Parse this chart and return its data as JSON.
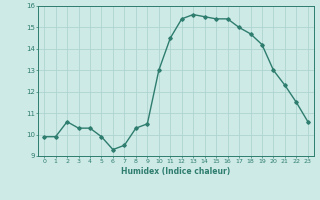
{
  "x": [
    0,
    1,
    2,
    3,
    4,
    5,
    6,
    7,
    8,
    9,
    10,
    11,
    12,
    13,
    14,
    15,
    16,
    17,
    18,
    19,
    20,
    21,
    22,
    23
  ],
  "y": [
    9.9,
    9.9,
    10.6,
    10.3,
    10.3,
    9.9,
    9.3,
    9.5,
    10.3,
    10.5,
    13.0,
    14.5,
    15.4,
    15.6,
    15.5,
    15.4,
    15.4,
    15.0,
    14.7,
    14.2,
    13.0,
    12.3,
    11.5,
    10.6
  ],
  "xlabel": "Humidex (Indice chaleur)",
  "ylim": [
    9,
    16
  ],
  "xlim": [
    -0.5,
    23.5
  ],
  "yticks": [
    9,
    10,
    11,
    12,
    13,
    14,
    15,
    16
  ],
  "xticks": [
    0,
    1,
    2,
    3,
    4,
    5,
    6,
    7,
    8,
    9,
    10,
    11,
    12,
    13,
    14,
    15,
    16,
    17,
    18,
    19,
    20,
    21,
    22,
    23
  ],
  "line_color": "#2e7d6e",
  "marker": "D",
  "marker_size": 1.8,
  "bg_color": "#ceeae7",
  "grid_color": "#aed4d0",
  "line_width": 1.0
}
